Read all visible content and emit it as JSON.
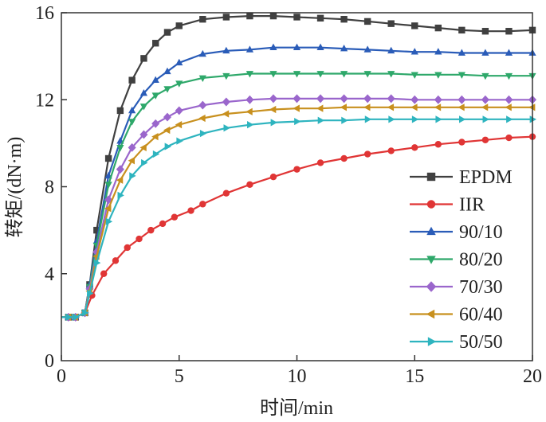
{
  "chart_data": {
    "type": "line",
    "xlabel": "时间/min",
    "ylabel": "转矩/(dN·m)",
    "xlim": [
      0,
      20
    ],
    "ylim": [
      0,
      16
    ],
    "xticks": [
      0,
      5,
      10,
      15,
      20
    ],
    "yticks": [
      4,
      8,
      12,
      16
    ],
    "grid": false,
    "legend_position": "bottom-right",
    "series": [
      {
        "name": "EPDM",
        "color": "#404040",
        "marker": "square",
        "x": [
          0,
          0.3,
          0.6,
          1.0,
          1.2,
          1.5,
          2.0,
          2.5,
          3.0,
          3.5,
          4.0,
          4.5,
          5.0,
          6.0,
          7.0,
          8.0,
          9.0,
          10.0,
          11.0,
          12.0,
          13.0,
          14.0,
          15.0,
          16.0,
          17.0,
          18.0,
          19.0,
          20.0
        ],
        "y": [
          2.0,
          2.0,
          2.0,
          2.2,
          3.5,
          6.0,
          9.3,
          11.5,
          12.9,
          13.9,
          14.6,
          15.1,
          15.4,
          15.7,
          15.8,
          15.85,
          15.85,
          15.8,
          15.75,
          15.7,
          15.6,
          15.5,
          15.4,
          15.3,
          15.2,
          15.15,
          15.15,
          15.2
        ]
      },
      {
        "name": "IIR",
        "color": "#e03535",
        "marker": "circle",
        "x": [
          0,
          0.3,
          0.6,
          1.0,
          1.3,
          1.8,
          2.3,
          2.8,
          3.3,
          3.8,
          4.3,
          4.8,
          5.5,
          6.0,
          7.0,
          8.0,
          9.0,
          10.0,
          11.0,
          12.0,
          13.0,
          14.0,
          15.0,
          16.0,
          17.0,
          18.0,
          19.0,
          20.0
        ],
        "y": [
          2.0,
          2.0,
          2.0,
          2.2,
          3.0,
          4.0,
          4.6,
          5.2,
          5.6,
          6.0,
          6.3,
          6.6,
          6.9,
          7.2,
          7.7,
          8.1,
          8.45,
          8.8,
          9.1,
          9.3,
          9.5,
          9.65,
          9.8,
          9.95,
          10.05,
          10.15,
          10.25,
          10.3
        ]
      },
      {
        "name": "90/10",
        "color": "#2a5cb8",
        "marker": "triangle-up",
        "x": [
          0,
          0.3,
          0.6,
          1.0,
          1.2,
          1.5,
          2.0,
          2.5,
          3.0,
          3.5,
          4.0,
          4.5,
          5.0,
          6.0,
          7.0,
          8.0,
          9.0,
          10.0,
          11.0,
          12.0,
          13.0,
          14.0,
          15.0,
          16.0,
          17.0,
          18.0,
          19.0,
          20.0
        ],
        "y": [
          2.0,
          2.0,
          2.0,
          2.2,
          3.5,
          5.5,
          8.5,
          10.1,
          11.5,
          12.3,
          12.9,
          13.3,
          13.7,
          14.1,
          14.25,
          14.3,
          14.4,
          14.4,
          14.4,
          14.35,
          14.3,
          14.25,
          14.2,
          14.2,
          14.15,
          14.15,
          14.15,
          14.15
        ]
      },
      {
        "name": "80/20",
        "color": "#2ea86a",
        "marker": "triangle-down",
        "x": [
          0,
          0.3,
          0.6,
          1.0,
          1.2,
          1.5,
          2.0,
          2.5,
          3.0,
          3.5,
          4.0,
          4.5,
          5.0,
          6.0,
          7.0,
          8.0,
          9.0,
          10.0,
          11.0,
          12.0,
          13.0,
          14.0,
          15.0,
          16.0,
          17.0,
          18.0,
          19.0,
          20.0
        ],
        "y": [
          2.0,
          2.0,
          2.0,
          2.2,
          3.4,
          5.3,
          8.1,
          9.8,
          11.0,
          11.7,
          12.2,
          12.5,
          12.75,
          13.0,
          13.1,
          13.2,
          13.2,
          13.2,
          13.2,
          13.2,
          13.2,
          13.2,
          13.15,
          13.15,
          13.15,
          13.1,
          13.1,
          13.1
        ]
      },
      {
        "name": "70/30",
        "color": "#9a66cc",
        "marker": "diamond",
        "x": [
          0,
          0.3,
          0.6,
          1.0,
          1.2,
          1.5,
          2.0,
          2.5,
          3.0,
          3.5,
          4.0,
          4.5,
          5.0,
          6.0,
          7.0,
          8.0,
          9.0,
          10.0,
          11.0,
          12.0,
          13.0,
          14.0,
          15.0,
          16.0,
          17.0,
          18.0,
          19.0,
          20.0
        ],
        "y": [
          2.0,
          2.0,
          2.0,
          2.2,
          3.3,
          5.0,
          7.4,
          8.8,
          9.8,
          10.4,
          10.9,
          11.2,
          11.5,
          11.75,
          11.9,
          12.0,
          12.05,
          12.05,
          12.05,
          12.05,
          12.05,
          12.05,
          12.0,
          12.0,
          12.0,
          12.0,
          12.0,
          12.0
        ]
      },
      {
        "name": "60/40",
        "color": "#c8901e",
        "marker": "triangle-left",
        "x": [
          0,
          0.3,
          0.6,
          1.0,
          1.2,
          1.5,
          2.0,
          2.5,
          3.0,
          3.5,
          4.0,
          4.5,
          5.0,
          6.0,
          7.0,
          8.0,
          9.0,
          10.0,
          11.0,
          12.0,
          13.0,
          14.0,
          15.0,
          16.0,
          17.0,
          18.0,
          19.0,
          20.0
        ],
        "y": [
          2.0,
          2.0,
          2.0,
          2.2,
          3.2,
          4.8,
          7.0,
          8.3,
          9.2,
          9.8,
          10.3,
          10.6,
          10.85,
          11.15,
          11.35,
          11.45,
          11.55,
          11.6,
          11.6,
          11.65,
          11.65,
          11.65,
          11.65,
          11.65,
          11.65,
          11.65,
          11.65,
          11.65
        ]
      },
      {
        "name": "50/50",
        "color": "#2eb4bf",
        "marker": "triangle-right",
        "x": [
          0,
          0.3,
          0.6,
          1.0,
          1.2,
          1.5,
          2.0,
          2.5,
          3.0,
          3.5,
          4.0,
          4.5,
          5.0,
          6.0,
          7.0,
          8.0,
          9.0,
          10.0,
          11.0,
          12.0,
          13.0,
          14.0,
          15.0,
          16.0,
          17.0,
          18.0,
          19.0,
          20.0
        ],
        "y": [
          2.0,
          2.0,
          2.0,
          2.2,
          3.1,
          4.5,
          6.4,
          7.6,
          8.5,
          9.1,
          9.5,
          9.85,
          10.1,
          10.45,
          10.7,
          10.85,
          10.95,
          11.0,
          11.05,
          11.05,
          11.1,
          11.1,
          11.1,
          11.1,
          11.1,
          11.1,
          11.1,
          11.1
        ]
      }
    ]
  }
}
